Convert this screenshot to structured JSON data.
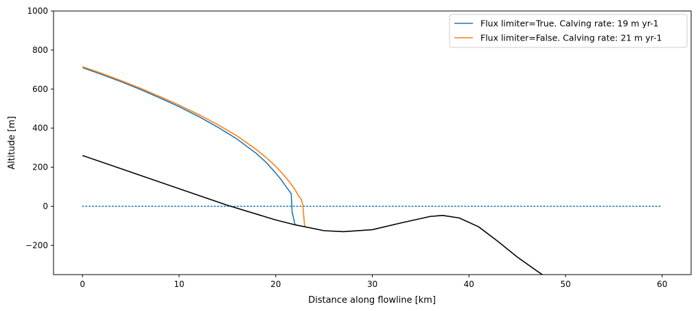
{
  "chart_data": {
    "type": "line",
    "title": "",
    "xlabel": "Distance along flowline [km]",
    "ylabel": "Altitude [m]",
    "xlim": [
      -3,
      63
    ],
    "ylim": [
      -350,
      1000
    ],
    "xticks": [
      0,
      10,
      20,
      30,
      40,
      50,
      60
    ],
    "yticks": [
      -200,
      0,
      200,
      400,
      600,
      800,
      1000
    ],
    "grid": false,
    "legend_position": "top-right",
    "series": [
      {
        "name": "Flux limiter=True. Calving rate: 19 m yr-1",
        "color": "#1f77b4",
        "style": "solid",
        "x": [
          0,
          2,
          4,
          6,
          8,
          10,
          12,
          14,
          16,
          18,
          19,
          20,
          20.5,
          21,
          21.3,
          21.6,
          21.7,
          22.0
        ],
        "y": [
          710,
          675,
          638,
          598,
          555,
          510,
          460,
          405,
          344,
          270,
          225,
          170,
          140,
          105,
          85,
          65,
          -30,
          -95
        ]
      },
      {
        "name": "Flux limiter=False. Calving rate: 21 m yr-1",
        "color": "#ff7f0e",
        "style": "solid",
        "x": [
          0,
          2,
          4,
          6,
          8,
          10,
          12,
          14,
          16,
          18,
          19,
          20,
          21,
          21.5,
          22,
          22.4,
          22.6,
          22.8,
          22.9,
          23.0
        ],
        "y": [
          715,
          680,
          643,
          604,
          562,
          518,
          470,
          418,
          360,
          290,
          250,
          205,
          150,
          120,
          85,
          50,
          40,
          10,
          -50,
          -105
        ]
      },
      {
        "name": "",
        "color": "#000000",
        "style": "solid",
        "x": [
          0,
          5,
          10,
          15,
          20,
          22,
          25,
          27,
          30,
          33,
          36,
          37.3,
          39,
          41,
          43,
          45,
          47,
          47.6
        ],
        "y": [
          260,
          175,
          90,
          5,
          -70,
          -95,
          -125,
          -130,
          -120,
          -85,
          -52,
          -47,
          -60,
          -105,
          -180,
          -260,
          -330,
          -350
        ]
      },
      {
        "name": "",
        "color": "#1f77b4",
        "style": "dotted",
        "x": [
          0,
          60
        ],
        "y": [
          0,
          0
        ]
      }
    ]
  }
}
